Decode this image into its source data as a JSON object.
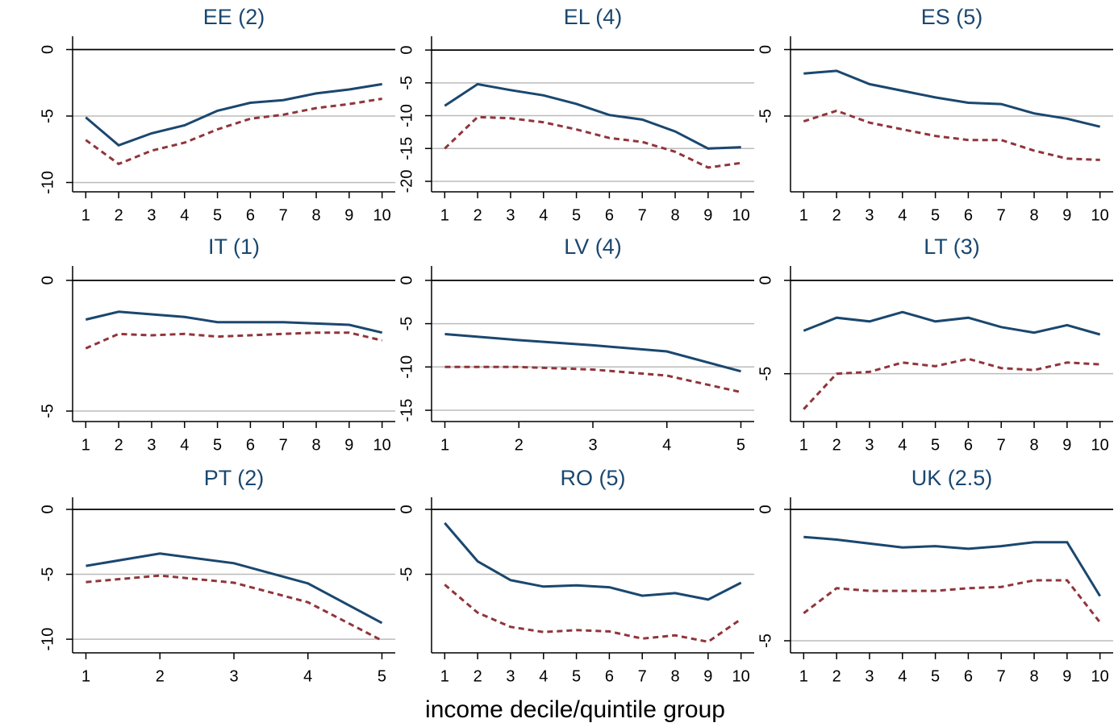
{
  "chart_data": [
    {
      "type": "line",
      "title": "EE (2)",
      "x": [
        1,
        2,
        3,
        4,
        5,
        6,
        7,
        8,
        9,
        10
      ],
      "xlim": [
        0.6,
        10.4
      ],
      "xticks": [
        1,
        2,
        3,
        4,
        5,
        6,
        7,
        8,
        9,
        10
      ],
      "ylim": [
        -10.7,
        1
      ],
      "yticks": [
        0,
        -5,
        -10
      ],
      "grid": true,
      "series": [
        {
          "color": "#1a476f",
          "dash": false,
          "values": [
            -5.1,
            -7.2,
            -6.3,
            -5.7,
            -4.6,
            -4.0,
            -3.8,
            -3.3,
            -3.0,
            -2.6
          ]
        },
        {
          "color": "#90353b",
          "dash": true,
          "values": [
            -6.8,
            -8.6,
            -7.6,
            -7.0,
            -6.0,
            -5.2,
            -4.9,
            -4.4,
            -4.1,
            -3.7
          ]
        }
      ]
    },
    {
      "type": "line",
      "title": "EL (4)",
      "x": [
        1,
        2,
        3,
        4,
        5,
        6,
        7,
        8,
        9,
        10
      ],
      "xlim": [
        0.6,
        10.4
      ],
      "xticks": [
        1,
        2,
        3,
        4,
        5,
        6,
        7,
        8,
        9,
        10
      ],
      "ylim": [
        -21.6,
        2.1
      ],
      "yticks": [
        0,
        -5,
        -10,
        -15,
        -20
      ],
      "grid": true,
      "series": [
        {
          "color": "#1a476f",
          "dash": false,
          "values": [
            -8.5,
            -5.2,
            -6.1,
            -6.9,
            -8.2,
            -9.9,
            -10.6,
            -12.4,
            -15.0,
            -14.8
          ]
        },
        {
          "color": "#90353b",
          "dash": true,
          "values": [
            -15.0,
            -10.2,
            -10.4,
            -11.0,
            -12.1,
            -13.4,
            -14.0,
            -15.5,
            -17.9,
            -17.2
          ]
        }
      ]
    },
    {
      "type": "line",
      "title": "ES (5)",
      "x": [
        1,
        2,
        3,
        4,
        5,
        6,
        7,
        8,
        9,
        10
      ],
      "xlim": [
        0.6,
        10.4
      ],
      "xticks": [
        1,
        2,
        3,
        4,
        5,
        6,
        7,
        8,
        9,
        10
      ],
      "ylim": [
        -10.7,
        1
      ],
      "yticks": [
        0,
        -5
      ],
      "grid": true,
      "series": [
        {
          "color": "#1a476f",
          "dash": false,
          "values": [
            -1.8,
            -1.6,
            -2.6,
            -3.1,
            -3.6,
            -4.0,
            -4.1,
            -4.8,
            -5.2,
            -5.8
          ]
        },
        {
          "color": "#90353b",
          "dash": true,
          "values": [
            -5.4,
            -4.6,
            -5.5,
            -6.0,
            -6.5,
            -6.8,
            -6.8,
            -7.6,
            -8.2,
            -8.3
          ]
        }
      ]
    },
    {
      "type": "line",
      "title": "IT (1)",
      "x": [
        1,
        2,
        3,
        4,
        5,
        6,
        7,
        8,
        9,
        10
      ],
      "xlim": [
        0.6,
        10.4
      ],
      "xticks": [
        1,
        2,
        3,
        4,
        5,
        6,
        7,
        8,
        9,
        10
      ],
      "ylim": [
        -5.4,
        0.55
      ],
      "yticks": [
        0,
        -5
      ],
      "grid": true,
      "series": [
        {
          "color": "#1a476f",
          "dash": false,
          "values": [
            -1.5,
            -1.2,
            -1.3,
            -1.4,
            -1.6,
            -1.6,
            -1.6,
            -1.65,
            -1.7,
            -2.0
          ]
        },
        {
          "color": "#90353b",
          "dash": true,
          "values": [
            -2.6,
            -2.05,
            -2.1,
            -2.05,
            -2.15,
            -2.1,
            -2.05,
            -2.0,
            -2.0,
            -2.3
          ]
        }
      ]
    },
    {
      "type": "line",
      "title": "LV (4)",
      "x": [
        1,
        2,
        3,
        4,
        5
      ],
      "xlim": [
        0.82,
        5.18
      ],
      "xticks": [
        1,
        2,
        3,
        4,
        5
      ],
      "ylim": [
        -16.3,
        1.66
      ],
      "yticks": [
        0,
        -5,
        -10,
        -15
      ],
      "grid": true,
      "series": [
        {
          "color": "#1a476f",
          "dash": false,
          "values": [
            -6.2,
            -6.9,
            -7.5,
            -8.2,
            -10.5
          ]
        },
        {
          "color": "#90353b",
          "dash": true,
          "values": [
            -10.0,
            -10.0,
            -10.3,
            -11.0,
            -12.9
          ]
        }
      ]
    },
    {
      "type": "line",
      "title": "LT (3)",
      "x": [
        1,
        2,
        3,
        4,
        5,
        6,
        7,
        8,
        9,
        10
      ],
      "xlim": [
        0.6,
        10.4
      ],
      "xticks": [
        1,
        2,
        3,
        4,
        5,
        6,
        7,
        8,
        9,
        10
      ],
      "ylim": [
        -7.56,
        0.77
      ],
      "yticks": [
        0,
        -5
      ],
      "grid": true,
      "series": [
        {
          "color": "#1a476f",
          "dash": false,
          "values": [
            -2.7,
            -2.0,
            -2.2,
            -1.7,
            -2.2,
            -2.0,
            -2.5,
            -2.8,
            -2.4,
            -2.9
          ]
        },
        {
          "color": "#90353b",
          "dash": true,
          "values": [
            -6.9,
            -5.0,
            -4.9,
            -4.4,
            -4.6,
            -4.2,
            -4.7,
            -4.8,
            -4.4,
            -4.5
          ]
        }
      ]
    },
    {
      "type": "line",
      "title": "PT (2)",
      "x": [
        1,
        2,
        3,
        4,
        5
      ],
      "xlim": [
        0.82,
        5.18
      ],
      "xticks": [
        1,
        2,
        3,
        4,
        5
      ],
      "ylim": [
        -11.05,
        0.93
      ],
      "yticks": [
        0,
        -5,
        -10
      ],
      "grid": true,
      "series": [
        {
          "color": "#1a476f",
          "dash": false,
          "values": [
            -4.35,
            -3.4,
            -4.15,
            -5.7,
            -8.75
          ]
        },
        {
          "color": "#90353b",
          "dash": true,
          "values": [
            -5.6,
            -5.1,
            -5.65,
            -7.15,
            -10.1
          ]
        }
      ]
    },
    {
      "type": "line",
      "title": "RO (5)",
      "x": [
        1,
        2,
        3,
        4,
        5,
        6,
        7,
        8,
        9,
        10
      ],
      "xlim": [
        0.6,
        10.4
      ],
      "xticks": [
        1,
        2,
        3,
        4,
        5,
        6,
        7,
        8,
        9,
        10
      ],
      "ylim": [
        -11.05,
        0.93
      ],
      "yticks": [
        0,
        -5
      ],
      "grid": true,
      "series": [
        {
          "color": "#1a476f",
          "dash": false,
          "values": [
            -1.05,
            -4.0,
            -5.45,
            -5.95,
            -5.85,
            -6.0,
            -6.65,
            -6.45,
            -6.95,
            -5.65
          ]
        },
        {
          "color": "#90353b",
          "dash": true,
          "values": [
            -5.8,
            -7.95,
            -9.05,
            -9.45,
            -9.3,
            -9.4,
            -9.95,
            -9.7,
            -10.2,
            -8.45
          ]
        }
      ]
    },
    {
      "type": "line",
      "title": "UK (2.5)",
      "x": [
        1,
        2,
        3,
        4,
        5,
        6,
        7,
        8,
        9,
        10
      ],
      "xlim": [
        0.6,
        10.4
      ],
      "xticks": [
        1,
        2,
        3,
        4,
        5,
        6,
        7,
        8,
        9,
        10
      ],
      "ylim": [
        -5.46,
        0.46
      ],
      "yticks": [
        0,
        -5
      ],
      "grid": true,
      "series": [
        {
          "color": "#1a476f",
          "dash": false,
          "values": [
            -1.05,
            -1.15,
            -1.3,
            -1.45,
            -1.4,
            -1.5,
            -1.4,
            -1.25,
            -1.25,
            -3.3
          ]
        },
        {
          "color": "#90353b",
          "dash": true,
          "values": [
            -3.95,
            -3.0,
            -3.1,
            -3.1,
            -3.1,
            -3.0,
            -2.95,
            -2.7,
            -2.7,
            -4.3
          ]
        }
      ]
    }
  ],
  "common_xlabel": "income decile/quintile group"
}
